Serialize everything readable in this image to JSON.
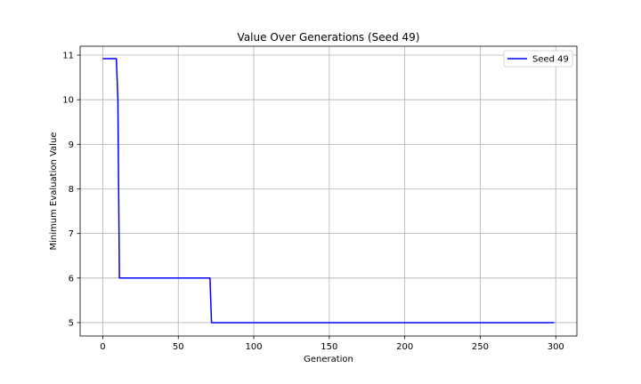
{
  "chart_data": {
    "type": "line",
    "title": "Value Over Generations (Seed 49)",
    "xlabel": "Generation",
    "ylabel": "Minimum Evaluation Value",
    "xlim": [
      -15,
      314
    ],
    "ylim": [
      4.7,
      11.2
    ],
    "xticks": [
      0,
      50,
      100,
      150,
      200,
      250,
      300
    ],
    "yticks": [
      5,
      6,
      7,
      8,
      9,
      10,
      11
    ],
    "grid": true,
    "legend": {
      "placement": "top-right"
    },
    "series": [
      {
        "name": "Seed 49",
        "color": "#0000ff",
        "x": [
          0,
          9,
          10,
          11,
          71,
          72,
          299
        ],
        "y": [
          10.92,
          10.92,
          10.0,
          6.0,
          6.0,
          5.0,
          5.0
        ]
      }
    ]
  }
}
